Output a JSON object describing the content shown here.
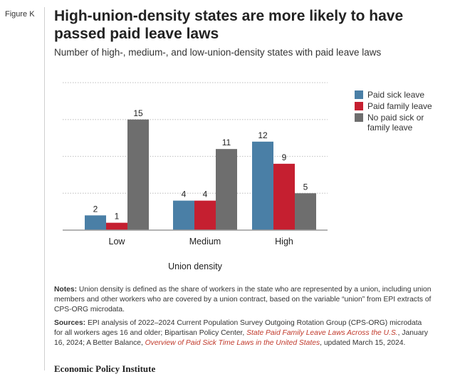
{
  "figure_label": "Figure K",
  "title": "High-union-density states are more likely to have passed paid leave laws",
  "subtitle": "Number of high-, medium-, and low-union-density states with paid leave laws",
  "colors": {
    "paid_sick": "#4a7fa6",
    "paid_family": "#c51f30",
    "no_paid": "#6e6e6e",
    "grid": "#c9c9c9",
    "axis": "#9a9a9a"
  },
  "chart_data": {
    "type": "bar",
    "title": "High-union-density states are more likely to have passed paid leave laws",
    "xlabel": "Union density",
    "ylabel": "",
    "ylim": [
      0,
      20
    ],
    "categories": [
      "Low",
      "Medium",
      "High"
    ],
    "series": [
      {
        "name": "Paid sick leave",
        "values": [
          2,
          4,
          12
        ]
      },
      {
        "name": "Paid family leave",
        "values": [
          1,
          4,
          9
        ]
      },
      {
        "name": "No paid sick or family leave",
        "values": [
          15,
          11,
          5
        ]
      }
    ],
    "grid": true,
    "legend": "right"
  },
  "legend": [
    {
      "label": "Paid sick leave",
      "color": "#4a7fa6"
    },
    {
      "label": "Paid family leave",
      "color": "#c51f30"
    },
    {
      "label": "No paid sick or family leave",
      "color": "#6e6e6e"
    }
  ],
  "notes": {
    "notes_label": "Notes:",
    "notes_text": "Union density is defined as the share of workers in the state who are represented by a union, including union members and other workers who are covered by a union contract, based on the variable “union” from EPI extracts of CPS-ORG microdata.",
    "sources_label": "Sources:",
    "sources_text_1": "EPI analysis of 2022–2024 Current Population Survey Outgoing Rotation Group (CPS-ORG) microdata for all workers ages 16 and older; Bipartisan Policy Center, ",
    "sources_link_1": "State Paid Family Leave Laws Across the U.S.",
    "sources_text_2": ", January 16, 2024; A Better Balance, ",
    "sources_link_2": "Overview of Paid Sick Time Laws in the United States",
    "sources_text_3": ", updated March 15, 2024."
  },
  "brand": "Economic Policy Institute"
}
